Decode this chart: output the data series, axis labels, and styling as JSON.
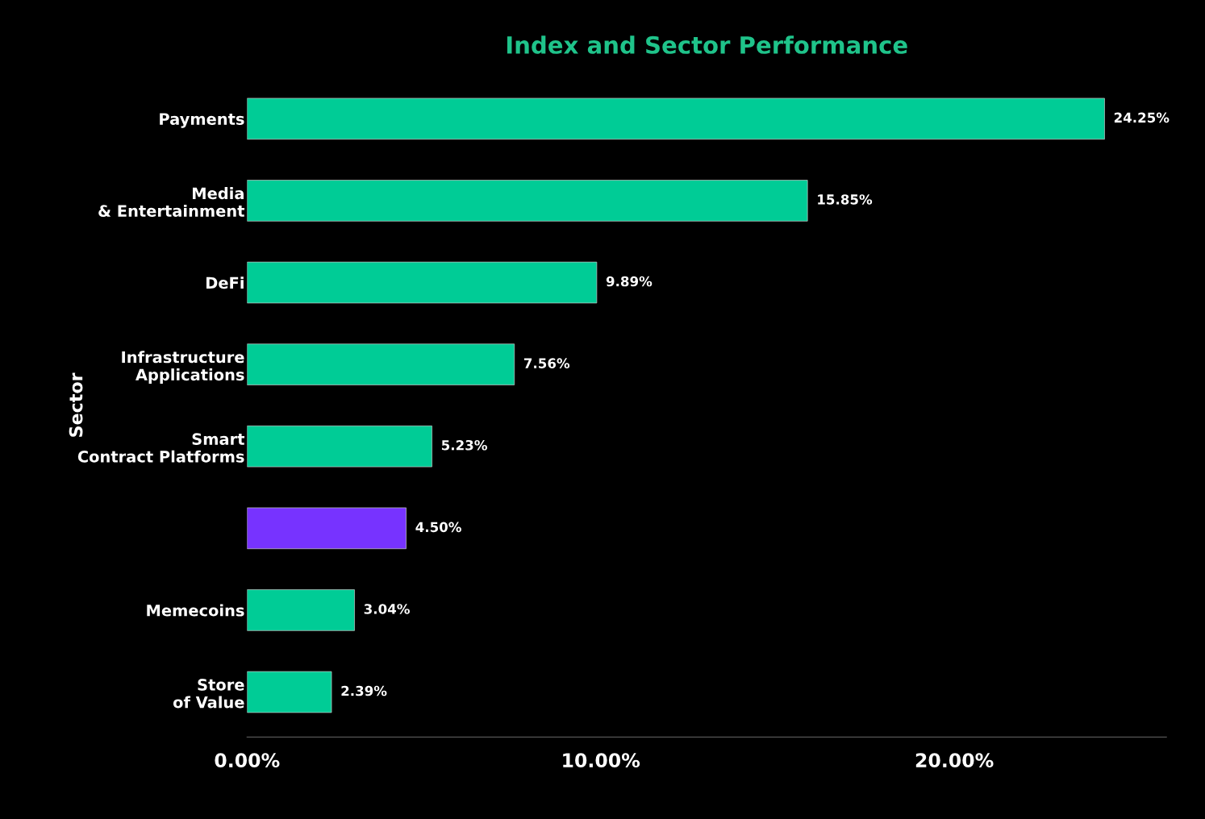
{
  "chart_data": {
    "type": "bar",
    "orientation": "horizontal",
    "title": "Index and Sector Performance",
    "ylabel": "Sector",
    "categories": [
      "Payments",
      "Media\n& Entertainment",
      "DeFi",
      "Infrastructure\nApplications",
      "Smart\nContract Platforms",
      null,
      "Memecoins",
      "Store\nof Value"
    ],
    "values": [
      24.25,
      15.85,
      9.89,
      7.56,
      5.23,
      4.5,
      3.04,
      2.39
    ],
    "colors": [
      "#00cc96",
      "#00cc96",
      "#00cc96",
      "#00cc96",
      "#00cc96",
      "#7733ff",
      "#00cc96",
      "#00cc96"
    ],
    "value_labels": [
      "24.25%",
      "15.85%",
      "9.89%",
      "7.56%",
      "5.23%",
      "4.50%",
      "3.04%",
      "2.39%"
    ],
    "xlim": [
      0,
      26
    ],
    "xticks": [
      {
        "value": 0,
        "label": "0.00%"
      },
      {
        "value": 10,
        "label": "10.00%"
      },
      {
        "value": 20,
        "label": "20.00%"
      }
    ],
    "grid": false,
    "legend": false
  }
}
